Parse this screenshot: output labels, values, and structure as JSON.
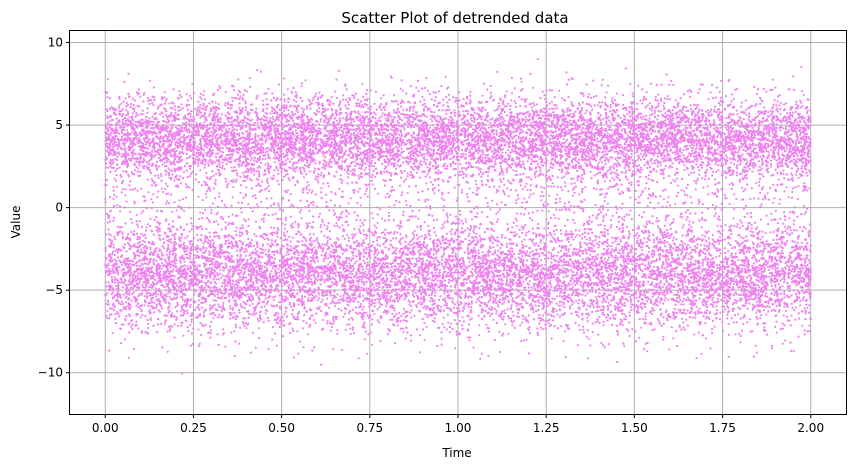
{
  "chart_data": {
    "type": "scatter",
    "title": "Scatter Plot of detrended data",
    "xlabel": "Time",
    "ylabel": "Value",
    "xlim": [
      -0.1,
      2.1
    ],
    "ylim": [
      -12.5,
      10.7
    ],
    "xticks": [
      0.0,
      0.25,
      0.5,
      0.75,
      1.0,
      1.25,
      1.5,
      1.75,
      2.0
    ],
    "xtick_labels": [
      "0.00",
      "0.25",
      "0.50",
      "0.75",
      "1.00",
      "1.25",
      "1.50",
      "1.75",
      "2.00"
    ],
    "yticks": [
      -10,
      -5,
      0,
      5,
      10
    ],
    "ytick_labels": [
      "−10",
      "−5",
      "0",
      "5",
      "10"
    ],
    "grid": true,
    "color": "#ee82ee",
    "series": [
      {
        "x_range": [
          0.0,
          2.0
        ],
        "n_points": 20000,
        "distribution": "bimodal",
        "modes": [
          4.2,
          -4.2
        ],
        "mode_spread": 1.6,
        "y_range": [
          -11.5,
          9.8
        ]
      }
    ]
  }
}
